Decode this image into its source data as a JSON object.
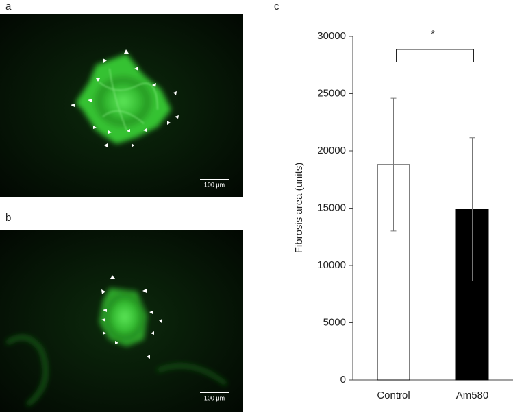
{
  "figure": {
    "panel_labels": [
      "a",
      "b",
      "c"
    ],
    "scale_bar_labels": [
      "100 μm",
      "100 μm"
    ]
  },
  "chart_data": {
    "type": "bar",
    "ylabel": "Fibrosis area (units)",
    "categories": [
      "Control",
      "Am580"
    ],
    "values": [
      18800,
      14900
    ],
    "errors": [
      5800,
      6250
    ],
    "colors": [
      "#ffffff",
      "#000000"
    ],
    "ylim": [
      0,
      30000
    ],
    "yticks": [
      0,
      5000,
      10000,
      15000,
      20000,
      25000,
      30000
    ],
    "grid": false,
    "significance": "*"
  }
}
